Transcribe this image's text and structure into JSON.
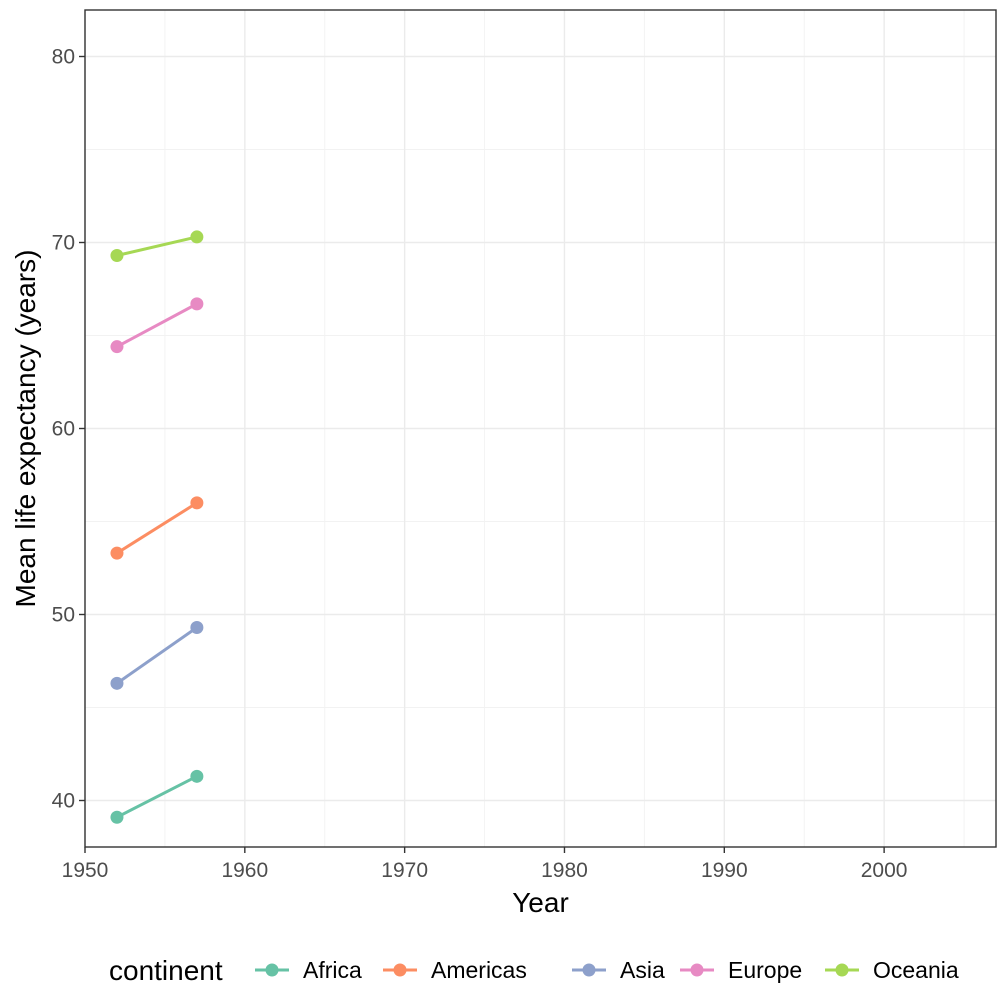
{
  "chart_data": {
    "type": "line",
    "xlabel": "Year",
    "ylabel": "Mean life expectancy (years)",
    "xlim": [
      1950,
      2007
    ],
    "ylim": [
      37.5,
      82.5
    ],
    "x_ticks": [
      1950,
      1960,
      1970,
      1980,
      1990,
      2000
    ],
    "y_ticks": [
      40,
      50,
      60,
      70,
      80
    ],
    "grid": true,
    "legend": {
      "title": "continent",
      "position": "bottom"
    },
    "x": [
      1952,
      1957
    ],
    "series": [
      {
        "name": "Africa",
        "color": "#66c2a5",
        "values": [
          39.1,
          41.3
        ]
      },
      {
        "name": "Americas",
        "color": "#fc8d62",
        "values": [
          53.3,
          56.0
        ]
      },
      {
        "name": "Asia",
        "color": "#8da0cb",
        "values": [
          46.3,
          49.3
        ]
      },
      {
        "name": "Europe",
        "color": "#e78ac3",
        "values": [
          64.4,
          66.7
        ]
      },
      {
        "name": "Oceania",
        "color": "#a6d854",
        "values": [
          69.3,
          70.3
        ]
      }
    ]
  }
}
